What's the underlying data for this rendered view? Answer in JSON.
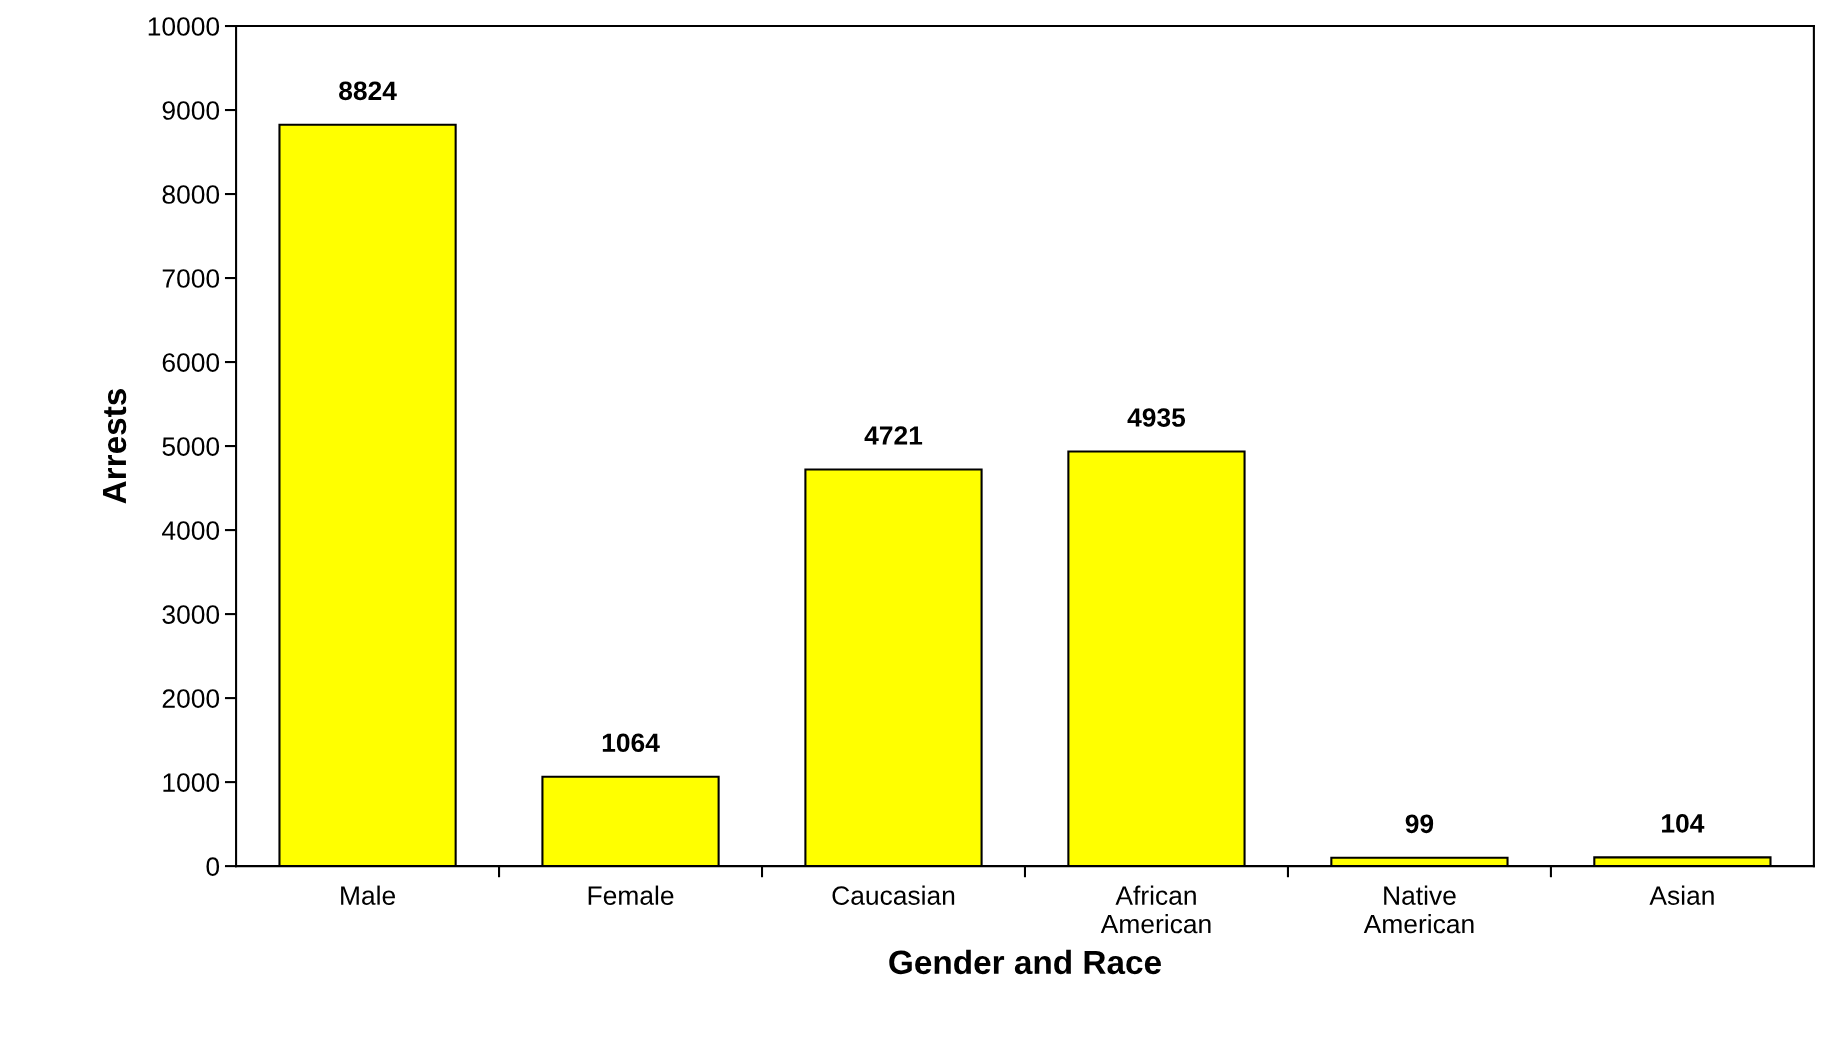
{
  "chart_data": {
    "type": "bar",
    "xlabel": "Gender and Race",
    "ylabel": "Arrests",
    "categories": [
      "Male",
      "Female",
      "Caucasian",
      "African\nAmerican",
      "Native\nAmerican",
      "Asian"
    ],
    "values": [
      8824,
      1064,
      4721,
      4935,
      99,
      104
    ],
    "color": "#ffff00",
    "ylim": [
      0,
      10000
    ],
    "yticks": [
      0,
      1000,
      2000,
      3000,
      4000,
      5000,
      6000,
      7000,
      8000,
      9000,
      10000
    ],
    "data_labels": true,
    "grid": false,
    "legend": false
  }
}
